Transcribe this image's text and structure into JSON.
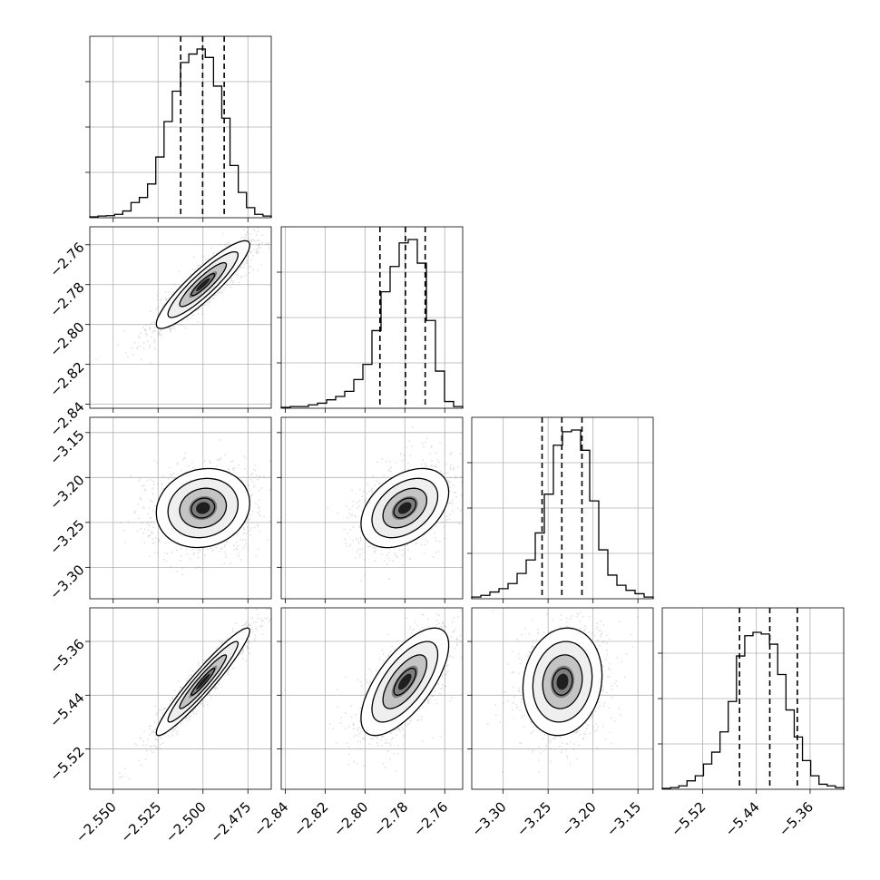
{
  "chart_data": {
    "type": "corner",
    "n_params": 4,
    "params": [
      {
        "ticks": [
          -2.55,
          -2.525,
          -2.5,
          -2.475
        ],
        "tick_labels": [
          "−2.550",
          "−2.525",
          "−2.500",
          "−2.475"
        ],
        "range": [
          -2.563,
          -2.462
        ]
      },
      {
        "ticks": [
          -2.84,
          -2.82,
          -2.8,
          -2.78,
          -2.76
        ],
        "tick_labels": [
          "−2.84",
          "−2.82",
          "−2.80",
          "−2.78",
          "−2.76"
        ],
        "range": [
          -2.842,
          -2.751
        ]
      },
      {
        "ticks": [
          -3.3,
          -3.25,
          -3.2,
          -3.15
        ],
        "tick_labels": [
          "−3.30",
          "−3.25",
          "−3.20",
          "−3.15"
        ],
        "range": [
          -3.335,
          -3.133
        ]
      },
      {
        "ticks": [
          -5.52,
          -5.44,
          -5.36
        ],
        "tick_labels": [
          "−5.52",
          "−5.44",
          "−5.36"
        ],
        "range": [
          -5.58,
          -5.31
        ]
      }
    ],
    "quantiles": [
      [
        -2.5124,
        -2.5002,
        -2.4882
      ],
      [
        -2.7925,
        -2.7797,
        -2.7698
      ],
      [
        -3.2567,
        -3.2347,
        -3.2123
      ],
      [
        -5.465,
        -5.42,
        -5.379
      ]
    ],
    "histograms": [
      [
        0.005,
        0.01,
        0.012,
        0.02,
        0.04,
        0.09,
        0.12,
        0.2,
        0.36,
        0.57,
        0.75,
        0.92,
        0.97,
        1.0,
        0.95,
        0.78,
        0.59,
        0.31,
        0.15,
        0.06,
        0.02,
        0.01
      ],
      [
        0.005,
        0.01,
        0.01,
        0.02,
        0.03,
        0.05,
        0.07,
        0.1,
        0.17,
        0.26,
        0.46,
        0.69,
        0.84,
        0.98,
        1.0,
        0.86,
        0.52,
        0.22,
        0.04,
        0.01
      ],
      [
        0.01,
        0.02,
        0.04,
        0.06,
        0.09,
        0.15,
        0.23,
        0.39,
        0.62,
        0.91,
        0.99,
        1.0,
        0.88,
        0.58,
        0.29,
        0.14,
        0.08,
        0.05,
        0.03,
        0.01
      ],
      [
        0.005,
        0.01,
        0.02,
        0.05,
        0.08,
        0.15,
        0.22,
        0.34,
        0.52,
        0.79,
        0.91,
        0.93,
        0.92,
        0.86,
        0.68,
        0.47,
        0.31,
        0.17,
        0.08,
        0.03,
        0.02,
        0.01
      ]
    ],
    "pairs": [
      {
        "row": 1,
        "col": 0,
        "center": [
          -2.5,
          -2.78
        ],
        "sigma": [
          0.013,
          0.011
        ],
        "rho": 0.9
      },
      {
        "row": 2,
        "col": 0,
        "center": [
          -2.5,
          -3.234
        ],
        "sigma": [
          0.013,
          0.022
        ],
        "rho": 0.12
      },
      {
        "row": 2,
        "col": 1,
        "center": [
          -2.78,
          -3.234
        ],
        "sigma": [
          0.011,
          0.022
        ],
        "rho": 0.4
      },
      {
        "row": 3,
        "col": 0,
        "center": [
          -2.5,
          -5.42
        ],
        "sigma": [
          0.013,
          0.04
        ],
        "rho": 0.95
      },
      {
        "row": 3,
        "col": 1,
        "center": [
          -2.78,
          -5.42
        ],
        "sigma": [
          0.011,
          0.04
        ],
        "rho": 0.68
      },
      {
        "row": 3,
        "col": 2,
        "center": [
          -3.234,
          -5.42
        ],
        "sigma": [
          0.022,
          0.04
        ],
        "rho": 0.12
      }
    ],
    "contour_levels_sigma": [
      0.5,
      1.0,
      1.5,
      2.0
    ],
    "grid": true
  }
}
